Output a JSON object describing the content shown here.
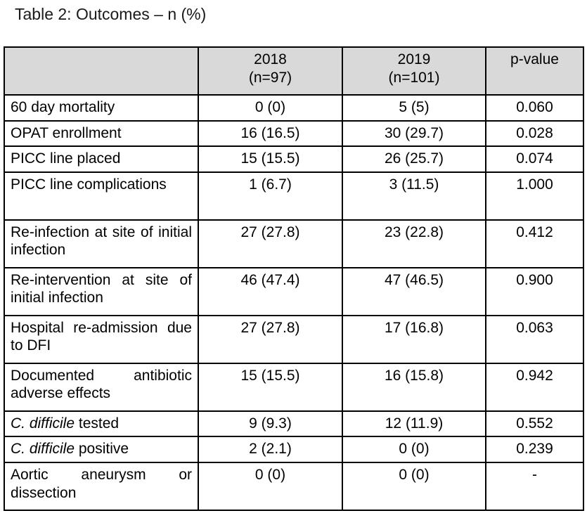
{
  "title": "Table 2: Outcomes – n (%)",
  "colors": {
    "header_bg": "#d9d9d9",
    "border": "#000000",
    "text": "#000000",
    "page_bg": "#ffffff"
  },
  "table": {
    "header": {
      "outcome": "",
      "col_2018": {
        "line1": "2018",
        "line2": "(n=97)"
      },
      "col_2019": {
        "line1": "2019",
        "line2": "(n=101)"
      },
      "col_pvalue": "p-value"
    },
    "rows": [
      {
        "label": "60 day mortality",
        "y2018": "0 (0)",
        "y2019": "5 (5)",
        "p": "0.060",
        "two_line": false
      },
      {
        "label": "OPAT enrollment",
        "y2018": "16 (16.5)",
        "y2019": "30 (29.7)",
        "p": "0.028",
        "two_line": false
      },
      {
        "label": "PICC line placed",
        "y2018": "15 (15.5)",
        "y2019": "26 (25.7)",
        "p": "0.074",
        "two_line": false
      },
      {
        "label": "PICC line complications",
        "y2018": "1 (6.7)",
        "y2019": "3 (11.5)",
        "p": "1.000",
        "two_line": true
      },
      {
        "label": "Re-infection at site of initial infection",
        "y2018": "27 (27.8)",
        "y2019": "23 (22.8)",
        "p": "0.412",
        "two_line": true
      },
      {
        "label": "Re-intervention at site of initial infection",
        "y2018": "46 (47.4)",
        "y2019": "47 (46.5)",
        "p": "0.900",
        "two_line": true
      },
      {
        "label": "Hospital re-admission due to DFI",
        "y2018": "27 (27.8)",
        "y2019": "17 (16.8)",
        "p": "0.063",
        "two_line": true
      },
      {
        "label": "Documented antibiotic adverse effects",
        "y2018": "15 (15.5)",
        "y2019": "16 (15.8)",
        "p": "0.942",
        "two_line": true
      },
      {
        "label_italic": "C. difficile",
        "label": " tested",
        "y2018": "9 (9.3)",
        "y2019": "12 (11.9)",
        "p": "0.552",
        "two_line": false
      },
      {
        "label_italic": "C. difficile",
        "label": " positive",
        "y2018": "2 (2.1)",
        "y2019": "0 (0)",
        "p": "0.239",
        "two_line": false
      },
      {
        "label": "Aortic aneurysm or dissection",
        "y2018": "0 (0)",
        "y2019": "0 (0)",
        "p": "-",
        "two_line": true
      }
    ]
  }
}
